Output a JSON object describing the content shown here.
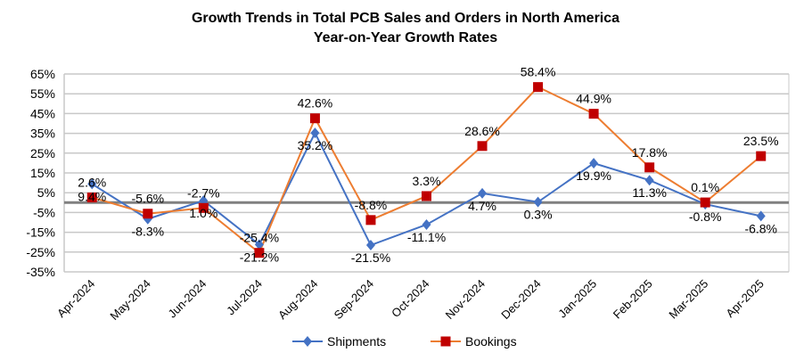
{
  "chart_data": {
    "type": "line",
    "title": "Growth Trends in Total PCB Sales and Orders in North America",
    "subtitle": "Year-on-Year Growth Rates",
    "xlabel": "",
    "ylabel": "",
    "categories": [
      "Apr-2024",
      "May-2024",
      "Jun-2024",
      "Jul-2024",
      "Aug-2024",
      "Sep-2024",
      "Oct-2024",
      "Nov-2024",
      "Dec-2024",
      "Jan-2025",
      "Feb-2025",
      "Mar-2025",
      "Apr-2025"
    ],
    "ylim": [
      -35,
      65
    ],
    "yticks": [
      65,
      55,
      45,
      35,
      25,
      15,
      5,
      -5,
      -15,
      -25,
      -35
    ],
    "ytick_labels": [
      "65%",
      "55%",
      "45%",
      "35%",
      "25%",
      "15%",
      "5%",
      "-5%",
      "-15%",
      "-25%",
      "-35%"
    ],
    "grid": true,
    "zero_line": true,
    "legend": "bottom",
    "series": [
      {
        "name": "Shipments",
        "color": "#4472C4",
        "marker": "diamond",
        "label_position": "below",
        "values": [
          9.4,
          -8.3,
          1.0,
          -21.2,
          35.2,
          -21.5,
          -11.1,
          4.7,
          0.3,
          19.9,
          11.3,
          -0.8,
          -6.8
        ],
        "labels": [
          "9.4%",
          "-8.3%",
          "1.0%",
          "-21.2%",
          "35.2%",
          "-21.5%",
          "-11.1%",
          "4.7%",
          "0.3%",
          "19.9%",
          "11.3%",
          "-0.8%",
          "-6.8%"
        ]
      },
      {
        "name": "Bookings",
        "color": "#ED7D31",
        "marker_color": "#C00000",
        "marker": "square",
        "label_position": "above",
        "values": [
          2.6,
          -5.6,
          -2.7,
          -25.4,
          42.6,
          -8.8,
          3.3,
          28.6,
          58.4,
          44.9,
          17.8,
          0.1,
          23.5
        ],
        "labels": [
          "2.6%",
          "-5.6%",
          "-2.7%",
          "-25.4%",
          "42.6%",
          "-8.8%",
          "3.3%",
          "28.6%",
          "58.4%",
          "44.9%",
          "17.8%",
          "0.1%",
          "23.5%"
        ]
      }
    ]
  }
}
